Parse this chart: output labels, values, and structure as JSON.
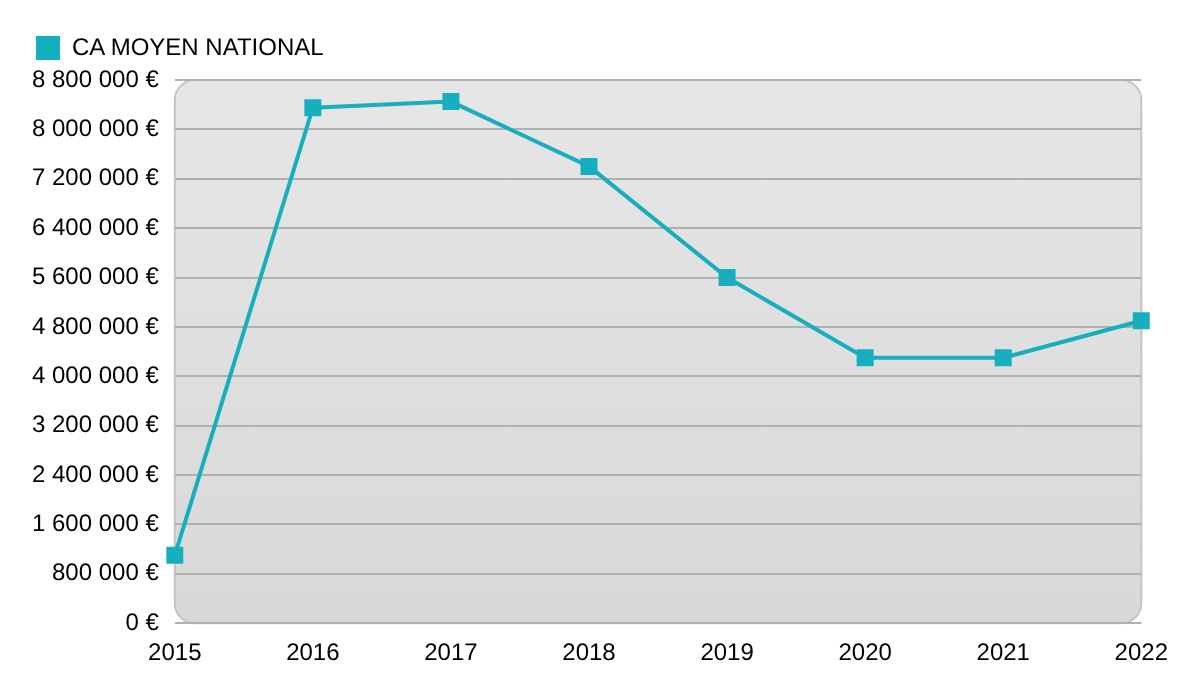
{
  "chart_data": {
    "type": "line",
    "categories": [
      "2015",
      "2016",
      "2017",
      "2018",
      "2019",
      "2020",
      "2021",
      "2022"
    ],
    "series": [
      {
        "name": "CA MOYEN NATIONAL",
        "color": "#17aebf",
        "values": [
          1100000,
          8350000,
          8450000,
          7400000,
          5600000,
          4300000,
          4300000,
          4900000
        ]
      }
    ],
    "ylim": [
      0,
      8800000
    ],
    "yticks": [
      {
        "value": 0,
        "label": "0 €"
      },
      {
        "value": 800000,
        "label": "800 000 €"
      },
      {
        "value": 1600000,
        "label": "1 600 000 €"
      },
      {
        "value": 2400000,
        "label": "2 400 000 €"
      },
      {
        "value": 3200000,
        "label": "3 200 000 €"
      },
      {
        "value": 4000000,
        "label": "4 000 000 €"
      },
      {
        "value": 4800000,
        "label": "4 800 000 €"
      },
      {
        "value": 5600000,
        "label": "5 600 000 €"
      },
      {
        "value": 6400000,
        "label": "6 400 000 €"
      },
      {
        "value": 7200000,
        "label": "7 200 000 €"
      },
      {
        "value": 8000000,
        "label": "8 000 000 €"
      },
      {
        "value": 8800000,
        "label": "8 800 000 €"
      }
    ],
    "grid": "y",
    "legend": "top left",
    "marker": "square",
    "line_style": "solid"
  }
}
